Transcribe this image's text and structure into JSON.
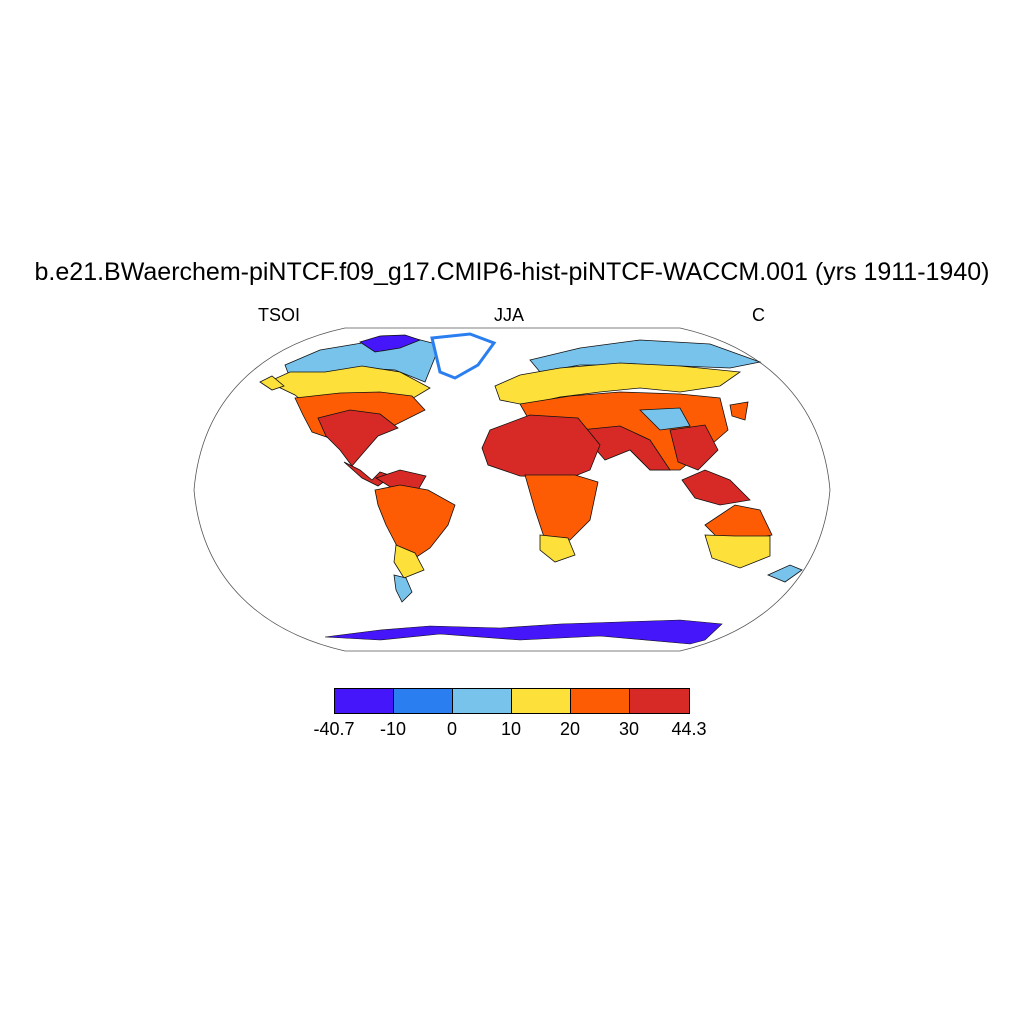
{
  "title": "b.e21.BWaerchem-piNTCF.f09_g17.CMIP6-hist-piNTCF-WACCM.001 (yrs 1911-1940)",
  "subtitle": {
    "left": "TSOI",
    "center": "JJA",
    "right": "C"
  },
  "colorbar": {
    "labels": [
      "-40.7",
      "-10",
      "0",
      "10",
      "20",
      "30",
      "44.3"
    ],
    "colors": [
      "#4616fb",
      "#2a7ef0",
      "#78c3ec",
      "#fde03a",
      "#fd5c05",
      "#d72a26"
    ]
  },
  "map": {
    "projection": "Robinson",
    "variable": "TSOI",
    "season": "JJA",
    "units": "C"
  }
}
